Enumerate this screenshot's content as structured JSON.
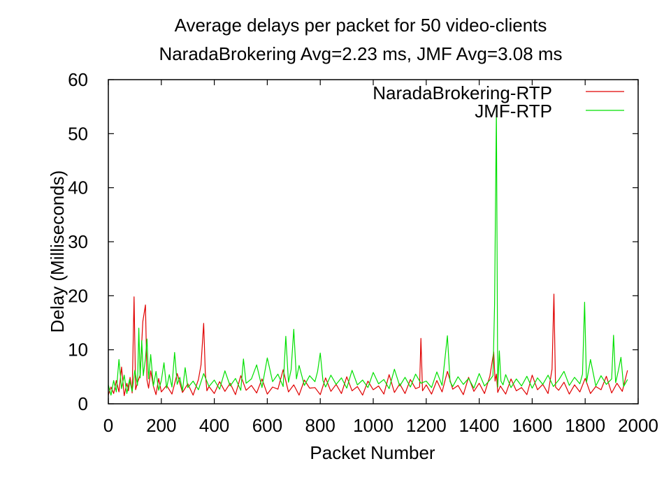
{
  "chart_data": {
    "type": "line",
    "title": "Average delays per packet for 50 video-clients",
    "subtitle": "NaradaBrokering Avg=2.23 ms, JMF Avg=3.08 ms",
    "xlabel": "Packet Number",
    "ylabel": "Delay (Milliseconds)",
    "xlim": [
      0,
      2000
    ],
    "ylim": [
      0,
      60
    ],
    "xticks": [
      "0",
      "200",
      "400",
      "600",
      "800",
      "1000",
      "1200",
      "1400",
      "1600",
      "1800",
      "2000"
    ],
    "yticks": [
      "0",
      "10",
      "20",
      "30",
      "40",
      "50",
      "60"
    ],
    "grid": false,
    "legend_position": "top-right",
    "series": [
      {
        "name": "NaradaBrokering-RTP",
        "color": "#e00000",
        "x": [
          0,
          10,
          20,
          30,
          40,
          50,
          60,
          70,
          76,
          82,
          90,
          97,
          103,
          110,
          120,
          130,
          140,
          146,
          152,
          160,
          170,
          180,
          190,
          200,
          220,
          240,
          260,
          280,
          300,
          320,
          340,
          350,
          360,
          366,
          372,
          380,
          400,
          420,
          440,
          460,
          480,
          500,
          520,
          540,
          560,
          580,
          600,
          620,
          640,
          660,
          680,
          700,
          720,
          740,
          760,
          780,
          800,
          820,
          840,
          860,
          880,
          900,
          920,
          940,
          960,
          980,
          1000,
          1020,
          1040,
          1060,
          1080,
          1100,
          1120,
          1140,
          1160,
          1175,
          1180,
          1186,
          1200,
          1220,
          1240,
          1260,
          1280,
          1300,
          1320,
          1340,
          1360,
          1380,
          1400,
          1420,
          1440,
          1455,
          1460,
          1465,
          1470,
          1480,
          1500,
          1520,
          1540,
          1560,
          1580,
          1600,
          1620,
          1640,
          1660,
          1675,
          1682,
          1688,
          1700,
          1720,
          1740,
          1760,
          1780,
          1800,
          1820,
          1840,
          1860,
          1880,
          1900,
          1920,
          1940,
          1960
        ],
        "values": [
          1.6,
          3.1,
          1.9,
          4.3,
          2.2,
          6.8,
          1.5,
          3.8,
          2.4,
          4.9,
          2.0,
          19.8,
          2.6,
          3.9,
          5.3,
          15.2,
          18.3,
          4.4,
          2.9,
          6.1,
          3.3,
          1.7,
          4.7,
          2.2,
          3.4,
          1.8,
          5.6,
          2.1,
          3.7,
          1.6,
          4.5,
          7.2,
          14.9,
          5.8,
          2.4,
          3.2,
          1.9,
          4.1,
          2.3,
          3.8,
          1.7,
          5.2,
          2.5,
          3.4,
          2.0,
          4.6,
          1.8,
          3.1,
          2.7,
          6.3,
          2.2,
          3.5,
          1.6,
          4.4,
          2.9,
          3.0,
          1.7,
          4.8,
          2.3,
          3.6,
          1.9,
          5.0,
          2.4,
          3.2,
          1.6,
          4.2,
          2.6,
          3.3,
          1.8,
          5.4,
          2.1,
          3.7,
          1.9,
          4.5,
          2.8,
          3.1,
          12.1,
          2.4,
          3.5,
          1.8,
          4.3,
          2.2,
          6.0,
          2.7,
          3.4,
          1.7,
          4.9,
          2.3,
          3.8,
          1.9,
          5.1,
          9.6,
          4.2,
          5.5,
          2.1,
          3.3,
          1.8,
          4.6,
          2.4,
          3.0,
          1.7,
          5.3,
          2.6,
          3.6,
          1.9,
          6.4,
          20.3,
          3.1,
          2.5,
          4.0,
          1.8,
          3.5,
          2.2,
          4.7,
          1.9,
          3.2,
          2.6,
          5.1,
          2.0,
          3.8,
          2.3,
          6.2
        ]
      },
      {
        "name": "JMF-RTP",
        "color": "#00e000",
        "x": [
          0,
          10,
          20,
          30,
          40,
          50,
          60,
          70,
          80,
          90,
          100,
          110,
          115,
          120,
          126,
          132,
          140,
          146,
          152,
          160,
          170,
          180,
          190,
          200,
          210,
          220,
          230,
          240,
          250,
          260,
          270,
          280,
          290,
          300,
          320,
          340,
          360,
          380,
          400,
          420,
          440,
          460,
          480,
          500,
          510,
          520,
          540,
          560,
          580,
          600,
          620,
          640,
          660,
          670,
          680,
          690,
          700,
          710,
          720,
          740,
          760,
          780,
          790,
          800,
          810,
          820,
          840,
          860,
          880,
          900,
          920,
          940,
          960,
          980,
          1000,
          1020,
          1040,
          1060,
          1080,
          1100,
          1120,
          1140,
          1160,
          1180,
          1200,
          1220,
          1240,
          1260,
          1280,
          1290,
          1300,
          1320,
          1340,
          1360,
          1380,
          1400,
          1420,
          1440,
          1452,
          1458,
          1465,
          1470,
          1476,
          1482,
          1490,
          1500,
          1520,
          1540,
          1560,
          1580,
          1600,
          1620,
          1640,
          1660,
          1680,
          1700,
          1720,
          1740,
          1760,
          1780,
          1790,
          1798,
          1805,
          1820,
          1840,
          1860,
          1880,
          1900,
          1907,
          1915,
          1925,
          1935,
          1945,
          1960
        ],
        "values": [
          3.5,
          1.6,
          4.3,
          2.2,
          8.2,
          2.8,
          5.3,
          1.9,
          4.5,
          2.3,
          6.2,
          3.4,
          14.0,
          4.8,
          11.7,
          5.2,
          8.4,
          12.0,
          4.6,
          9.1,
          3.3,
          6.0,
          2.5,
          4.3,
          7.6,
          2.9,
          5.4,
          3.1,
          9.5,
          3.6,
          4.9,
          2.4,
          6.7,
          3.0,
          4.2,
          2.6,
          5.6,
          3.2,
          4.4,
          2.7,
          6.1,
          3.3,
          4.7,
          2.5,
          8.3,
          3.8,
          4.6,
          7.2,
          3.0,
          8.5,
          4.1,
          5.5,
          3.2,
          12.5,
          4.0,
          6.3,
          13.8,
          4.6,
          7.1,
          3.4,
          5.2,
          4.1,
          6.0,
          9.4,
          4.3,
          3.1,
          5.3,
          3.6,
          4.8,
          2.9,
          6.2,
          3.5,
          4.4,
          3.0,
          5.8,
          3.7,
          4.5,
          2.8,
          6.4,
          3.3,
          4.9,
          3.1,
          5.5,
          3.8,
          4.2,
          3.0,
          5.9,
          3.4,
          12.6,
          4.1,
          3.2,
          5.0,
          3.6,
          4.7,
          2.9,
          5.6,
          3.3,
          4.4,
          5.2,
          18.3,
          54.5,
          3.1,
          9.8,
          4.2,
          3.5,
          5.4,
          3.0,
          4.6,
          3.3,
          5.1,
          2.9,
          4.8,
          3.6,
          5.3,
          3.2,
          4.4,
          6.0,
          3.4,
          4.9,
          3.7,
          5.5,
          18.8,
          4.0,
          8.2,
          3.3,
          5.2,
          3.6,
          4.6,
          12.7,
          3.9,
          6.1,
          8.6,
          3.2,
          4.5
        ]
      }
    ]
  }
}
